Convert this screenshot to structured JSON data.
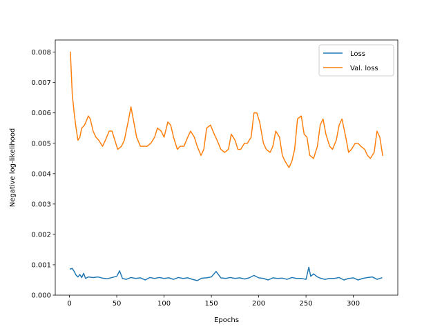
{
  "chart_data": {
    "type": "line",
    "title": "",
    "xlabel": "Epochs",
    "ylabel": "Negative log-likelihood",
    "xlim": [
      -15,
      347
    ],
    "ylim": [
      0,
      0.0084
    ],
    "xticks": [
      0,
      50,
      100,
      150,
      200,
      250,
      300
    ],
    "yticks": [
      0,
      0.001,
      0.002,
      0.003,
      0.004,
      0.005,
      0.006,
      0.007,
      0.008
    ],
    "ytick_labels": [
      "0.000",
      "0.001",
      "0.002",
      "0.003",
      "0.004",
      "0.005",
      "0.006",
      "0.007",
      "0.008"
    ],
    "grid": false,
    "legend_position": "top-right",
    "series": [
      {
        "name": "Loss",
        "color": "#1f77b4",
        "x": [
          1,
          3,
          5,
          7,
          9,
          11,
          13,
          15,
          17,
          20,
          25,
          30,
          35,
          40,
          45,
          50,
          53,
          56,
          60,
          65,
          70,
          75,
          80,
          85,
          90,
          95,
          100,
          105,
          110,
          115,
          120,
          125,
          130,
          135,
          140,
          145,
          150,
          155,
          160,
          165,
          170,
          175,
          180,
          185,
          190,
          195,
          200,
          205,
          210,
          215,
          220,
          225,
          230,
          235,
          240,
          245,
          250,
          253,
          255,
          258,
          262,
          266,
          270,
          275,
          280,
          285,
          290,
          295,
          300,
          305,
          310,
          315,
          320,
          325,
          330
        ],
        "values": [
          0.00086,
          0.00088,
          0.00078,
          0.00066,
          0.0006,
          0.00068,
          0.00058,
          0.00072,
          0.00055,
          0.0006,
          0.00058,
          0.0006,
          0.00056,
          0.00054,
          0.00058,
          0.00062,
          0.0008,
          0.00055,
          0.00052,
          0.00058,
          0.00055,
          0.00057,
          0.0005,
          0.00058,
          0.00055,
          0.00058,
          0.00055,
          0.00057,
          0.00052,
          0.00058,
          0.00055,
          0.00057,
          0.00052,
          0.00048,
          0.00056,
          0.00057,
          0.0006,
          0.00078,
          0.00057,
          0.00055,
          0.00058,
          0.00055,
          0.00057,
          0.00053,
          0.00057,
          0.00065,
          0.00057,
          0.00055,
          0.0005,
          0.00057,
          0.00055,
          0.00056,
          0.00052,
          0.00058,
          0.00055,
          0.00055,
          0.00052,
          0.00092,
          0.00062,
          0.0007,
          0.0006,
          0.00055,
          0.00052,
          0.00055,
          0.00055,
          0.00058,
          0.0005,
          0.00055,
          0.00057,
          0.0005,
          0.00055,
          0.00058,
          0.0006,
          0.00052,
          0.00057
        ]
      },
      {
        "name": "Val. loss",
        "color": "#ff7f0e",
        "x": [
          1,
          3,
          5,
          7,
          9,
          11,
          13,
          16,
          20,
          22,
          25,
          28,
          31,
          35,
          38,
          42,
          45,
          48,
          51,
          55,
          58,
          62,
          65,
          68,
          71,
          75,
          78,
          82,
          86,
          90,
          93,
          97,
          100,
          104,
          107,
          110,
          114,
          117,
          121,
          125,
          128,
          132,
          135,
          139,
          142,
          145,
          149,
          153,
          156,
          160,
          164,
          168,
          171,
          175,
          178,
          181,
          185,
          188,
          192,
          195,
          198,
          201,
          205,
          208,
          212,
          215,
          218,
          222,
          225,
          228,
          232,
          235,
          238,
          241,
          245,
          248,
          251,
          254,
          258,
          262,
          265,
          268,
          271,
          275,
          278,
          282,
          285,
          288,
          292,
          295,
          298,
          302,
          305,
          308,
          312,
          315,
          318,
          322,
          325,
          328,
          331
        ],
        "values": [
          0.008,
          0.0066,
          0.006,
          0.0055,
          0.0051,
          0.0052,
          0.0055,
          0.0056,
          0.0059,
          0.0058,
          0.0054,
          0.0052,
          0.0051,
          0.0049,
          0.0051,
          0.0054,
          0.0054,
          0.0051,
          0.0048,
          0.0049,
          0.0051,
          0.0057,
          0.0062,
          0.0057,
          0.0052,
          0.0049,
          0.0049,
          0.0049,
          0.005,
          0.0052,
          0.0055,
          0.0054,
          0.0052,
          0.0057,
          0.0056,
          0.0052,
          0.0048,
          0.0049,
          0.0049,
          0.0052,
          0.0054,
          0.0052,
          0.0049,
          0.0046,
          0.0048,
          0.0055,
          0.0056,
          0.0053,
          0.0051,
          0.0048,
          0.0047,
          0.0048,
          0.0053,
          0.0051,
          0.0048,
          0.0048,
          0.005,
          0.005,
          0.0052,
          0.006,
          0.006,
          0.0057,
          0.005,
          0.0048,
          0.0047,
          0.0049,
          0.0054,
          0.0052,
          0.0046,
          0.0044,
          0.0042,
          0.0044,
          0.0048,
          0.0058,
          0.0059,
          0.0053,
          0.0052,
          0.0046,
          0.0045,
          0.0049,
          0.0056,
          0.0058,
          0.0053,
          0.0049,
          0.0048,
          0.0051,
          0.0056,
          0.0058,
          0.0052,
          0.0047,
          0.0048,
          0.005,
          0.005,
          0.0049,
          0.0048,
          0.0046,
          0.0045,
          0.0047,
          0.0054,
          0.0052,
          0.0046
        ]
      }
    ]
  }
}
